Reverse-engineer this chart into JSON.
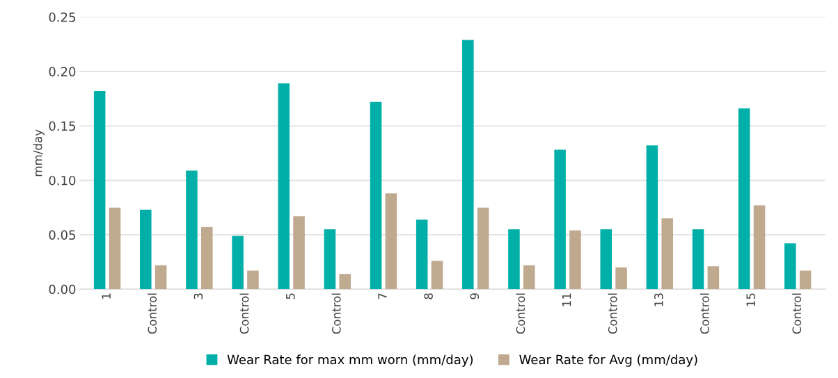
{
  "chart_data": {
    "type": "bar",
    "ylabel": "mm/day",
    "categories": [
      "1",
      "Control",
      "3",
      "Control",
      "5",
      "Control",
      "7",
      "8",
      "9",
      "Control",
      "11",
      "Control",
      "13",
      "Control",
      "15",
      "Control"
    ],
    "series": [
      {
        "name": "Wear Rate for max mm worn (mm/day)",
        "color": "#00b0a8",
        "values": [
          0.182,
          0.073,
          0.109,
          0.049,
          0.189,
          0.055,
          0.172,
          0.064,
          0.229,
          0.055,
          0.128,
          0.055,
          0.132,
          0.055,
          0.166,
          0.042
        ]
      },
      {
        "name": "Wear Rate for Avg (mm/day)",
        "color": "#bfa98f",
        "values": [
          0.075,
          0.022,
          0.057,
          0.017,
          0.067,
          0.014,
          0.088,
          0.026,
          0.075,
          0.022,
          0.054,
          0.02,
          0.065,
          0.021,
          0.077,
          0.017
        ]
      }
    ],
    "ylim": [
      0,
      0.25
    ],
    "yticks": [
      {
        "value": 0,
        "label": "0.00"
      },
      {
        "value": 0.05,
        "label": "0.05"
      },
      {
        "value": 0.1,
        "label": "0.10"
      },
      {
        "value": 0.15,
        "label": "0.15"
      },
      {
        "value": 0.2,
        "label": "0.20"
      },
      {
        "value": 0.25,
        "label": "0.25"
      }
    ],
    "grid": "y",
    "legend": "bottom"
  }
}
